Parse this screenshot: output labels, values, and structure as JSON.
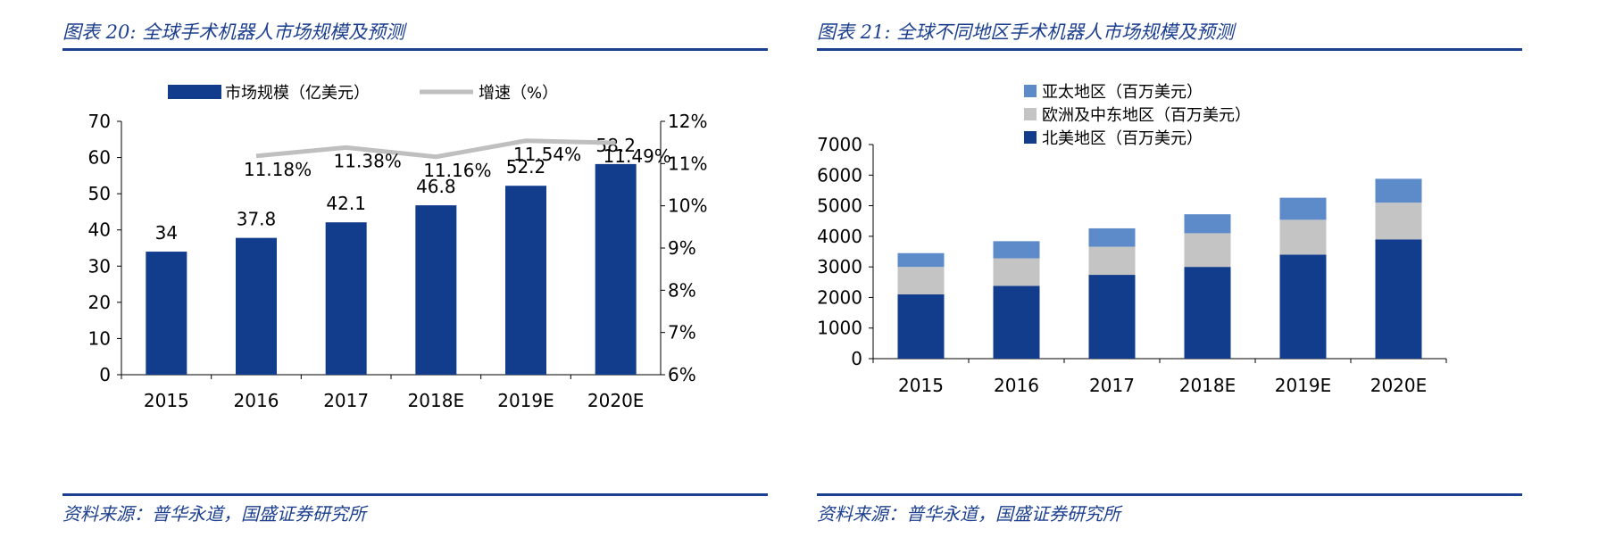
{
  "figures": [
    {
      "title": "图表 20:  全球手术机器人市场规模及预测",
      "source": "资料来源：普华永道，国盛证券研究所"
    },
    {
      "title": "图表 21:  全球不同地区手术机器人市场规模及预测",
      "source": "资料来源：普华永道，国盛证券研究所"
    }
  ],
  "colors": {
    "title_blue": "#1c3f8f",
    "bar_navy": "#123c8c",
    "line_gray": "#bfbfbf",
    "asia_blue": "#5d8ac9",
    "europe_gray": "#c4c4c4",
    "na_navy": "#123c8c"
  },
  "chart_data": [
    {
      "type": "bar",
      "categories": [
        "2015",
        "2016",
        "2017",
        "2018E",
        "2019E",
        "2020E"
      ],
      "series": [
        {
          "name": "市场规模（亿美元）",
          "type": "bar",
          "axis": "left",
          "values": [
            34,
            37.8,
            42.1,
            46.8,
            52.2,
            58.2
          ],
          "labels": [
            "34",
            "37.8",
            "42.1",
            "46.8",
            "52.2",
            "58.2"
          ]
        },
        {
          "name": "增速（%）",
          "type": "line",
          "axis": "right",
          "values": [
            null,
            11.18,
            11.38,
            11.16,
            11.54,
            11.49
          ],
          "labels": [
            "",
            "11.18%",
            "11.38%",
            "11.16%",
            "11.54%",
            "11.49%"
          ]
        }
      ],
      "ylim": [
        0,
        70
      ],
      "yticks": [
        "0",
        "10",
        "20",
        "30",
        "40",
        "50",
        "60",
        "70"
      ],
      "y2lim": [
        6,
        12
      ],
      "y2ticks": [
        "6%",
        "7%",
        "8%",
        "9%",
        "10%",
        "11%",
        "12%"
      ],
      "legend": "top",
      "grid": false
    },
    {
      "type": "bar",
      "stacked": true,
      "categories": [
        "2015",
        "2016",
        "2017",
        "2018E",
        "2019E",
        "2020E"
      ],
      "series": [
        {
          "name": "北美地区（百万美元）",
          "values": [
            2100,
            2380,
            2740,
            3000,
            3400,
            3900
          ]
        },
        {
          "name": "欧洲及中东地区（百万美元）",
          "values": [
            900,
            900,
            920,
            1100,
            1140,
            1200
          ]
        },
        {
          "name": "亚太地区（百万美元）",
          "values": [
            450,
            560,
            600,
            620,
            720,
            780
          ]
        }
      ],
      "legend_order": [
        "亚太地区（百万美元）",
        "欧洲及中东地区（百万美元）",
        "北美地区（百万美元）"
      ],
      "ylim": [
        0,
        7000
      ],
      "yticks": [
        "0",
        "1000",
        "2000",
        "3000",
        "4000",
        "5000",
        "6000",
        "7000"
      ],
      "legend": "top",
      "grid": false
    }
  ]
}
